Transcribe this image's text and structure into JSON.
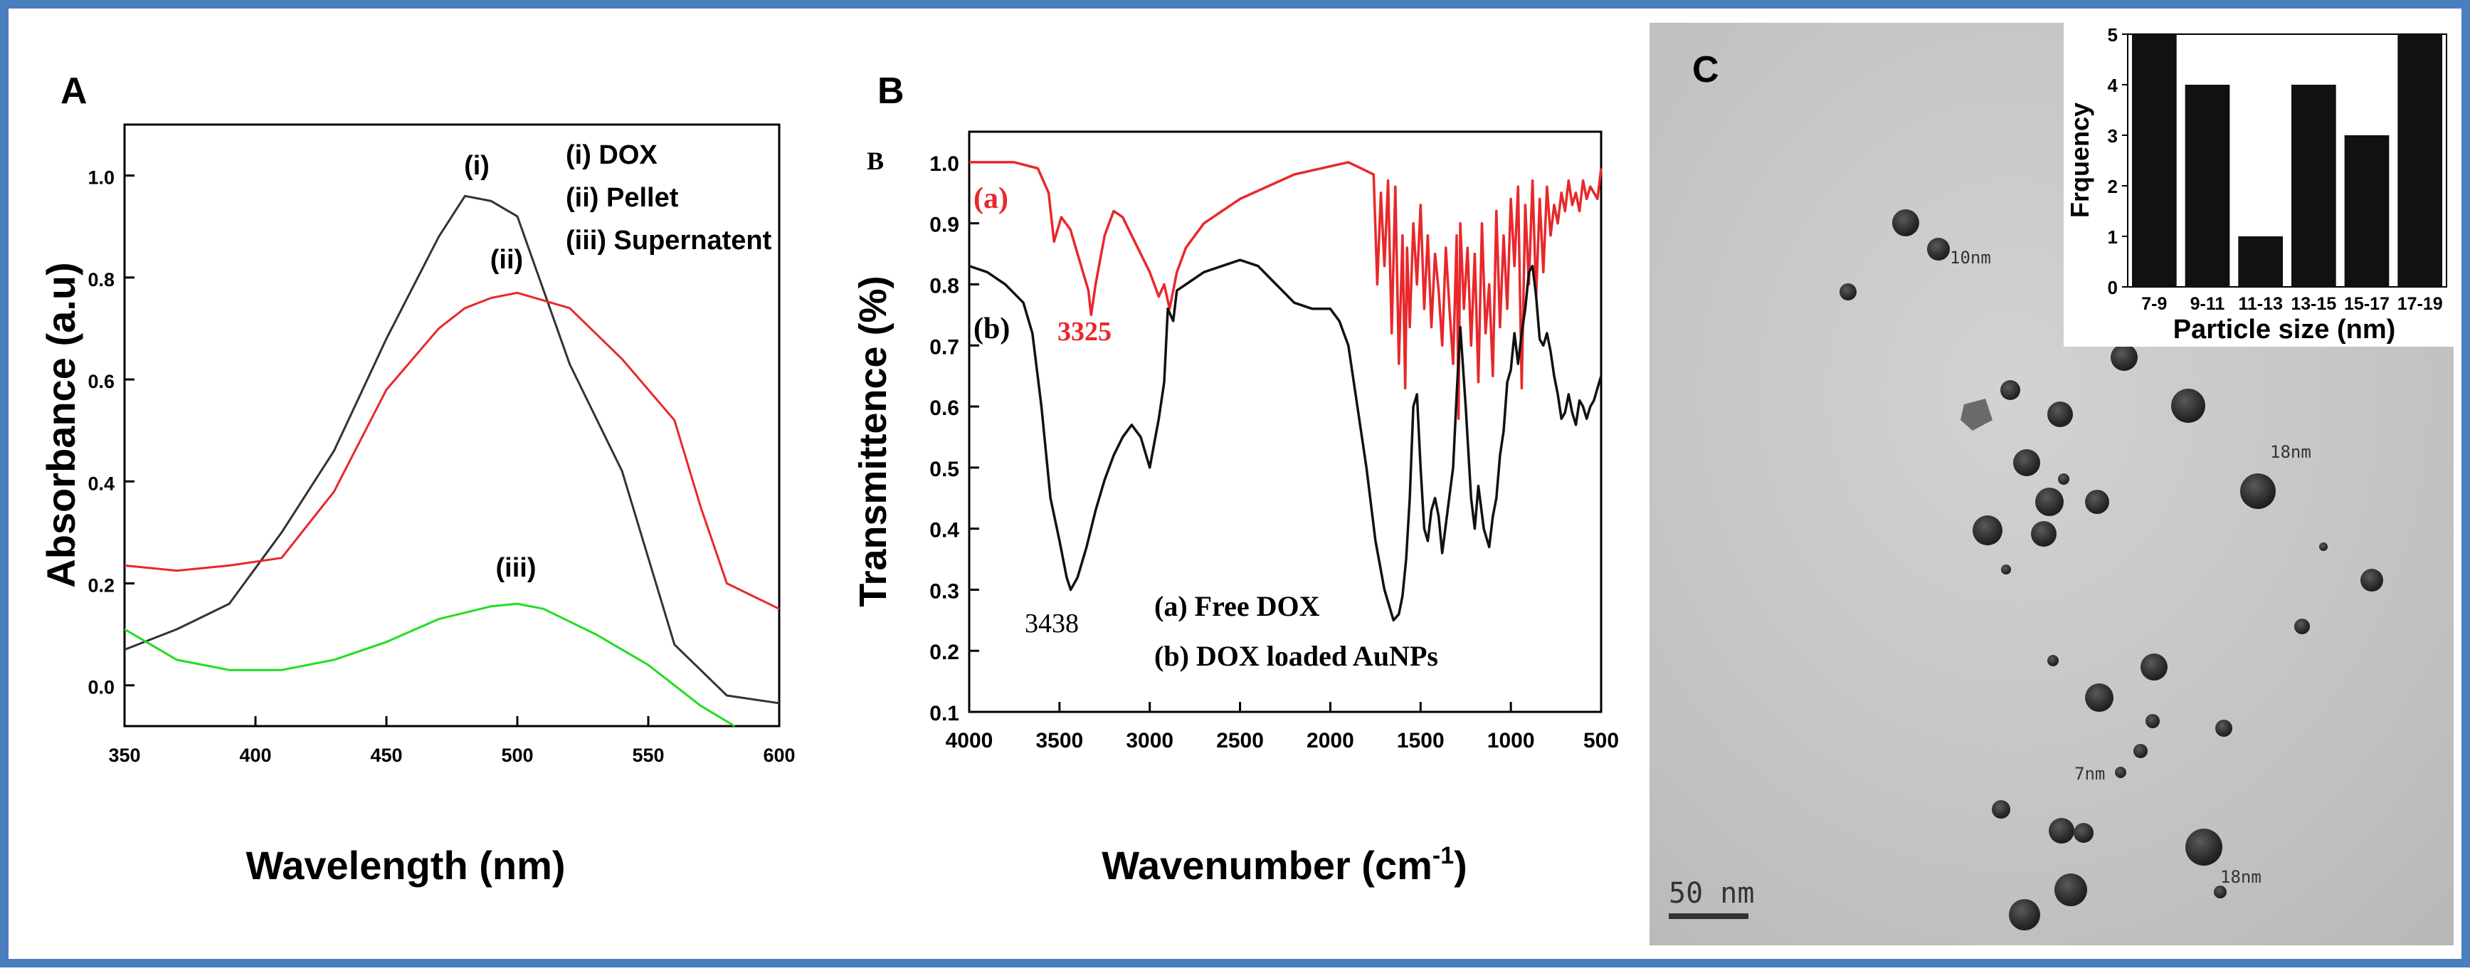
{
  "colors": {
    "frame": "#4a7ebf",
    "black_curve": "#333333",
    "red": "#e8282b",
    "green": "#22dd22",
    "tem_bg": "#c8c8c8"
  },
  "chart_data": [
    {
      "panel": "A",
      "type": "line",
      "xlabel": "Wavelength (nm)",
      "ylabel": "Absorbance (a.u)",
      "xlim": [
        350,
        600
      ],
      "ylim": [
        -0.08,
        1.1
      ],
      "xticks": [
        "350",
        "400",
        "450",
        "500",
        "550",
        "600"
      ],
      "yticks": [
        "0.0",
        "0.2",
        "0.4",
        "0.6",
        "0.8",
        "1.0"
      ],
      "legend": [
        "(i) DOX",
        "(ii) Pellet",
        "(iii) Supernatent"
      ],
      "series": [
        {
          "name": "(i)",
          "color": "#333333",
          "x": [
            350,
            370,
            390,
            410,
            430,
            450,
            470,
            480,
            490,
            500,
            520,
            540,
            560,
            580,
            600
          ],
          "y": [
            0.07,
            0.11,
            0.16,
            0.3,
            0.46,
            0.68,
            0.88,
            0.96,
            0.95,
            0.92,
            0.63,
            0.42,
            0.08,
            -0.02,
            -0.035
          ]
        },
        {
          "name": "(ii)",
          "color": "#e8282b",
          "x": [
            350,
            370,
            390,
            410,
            430,
            450,
            470,
            480,
            490,
            500,
            520,
            540,
            560,
            570,
            580,
            600
          ],
          "y": [
            0.235,
            0.225,
            0.235,
            0.25,
            0.38,
            0.58,
            0.7,
            0.74,
            0.76,
            0.77,
            0.74,
            0.64,
            0.52,
            0.35,
            0.2,
            0.15
          ]
        },
        {
          "name": "(iii)",
          "color": "#22dd22",
          "x": [
            350,
            370,
            390,
            410,
            430,
            450,
            470,
            490,
            500,
            510,
            530,
            550,
            570,
            583
          ],
          "y": [
            0.11,
            0.05,
            0.03,
            0.03,
            0.05,
            0.085,
            0.13,
            0.155,
            0.16,
            0.15,
            0.1,
            0.04,
            -0.04,
            -0.09
          ]
        }
      ],
      "annotations": [
        "(i)",
        "(ii)",
        "(iii)"
      ]
    },
    {
      "panel": "B",
      "type": "line",
      "xlabel": "Wavenumber (cm⁻¹)",
      "xlabel_main": "Wavenumber (cm",
      "xlabel_sup": "-1",
      "xlabel_close": ")",
      "ylabel": "Transmittence (%)",
      "xlim": [
        4000,
        500
      ],
      "ylim": [
        0.1,
        1.05
      ],
      "xticks": [
        "4000",
        "3500",
        "3000",
        "2500",
        "2000",
        "1500",
        "1000",
        "500"
      ],
      "yticks": [
        "0.1",
        "0.2",
        "0.3",
        "0.4",
        "0.5",
        "0.6",
        "0.7",
        "0.8",
        "0.9",
        "1.0"
      ],
      "corner_label": "B",
      "series": [
        {
          "name": "(a) Free DOX",
          "color": "#e8282b",
          "x": [
            4000,
            3750,
            3620,
            3560,
            3530,
            3490,
            3440,
            3390,
            3340,
            3325,
            3300,
            3250,
            3200,
            3150,
            3100,
            3000,
            2950,
            2920,
            2890,
            2850,
            2800,
            2700,
            2500,
            2200,
            1900,
            1760,
            1740,
            1720,
            1700,
            1680,
            1660,
            1640,
            1620,
            1600,
            1585,
            1575,
            1560,
            1540,
            1520,
            1500,
            1480,
            1460,
            1440,
            1420,
            1400,
            1380,
            1360,
            1340,
            1320,
            1300,
            1290,
            1280,
            1260,
            1240,
            1220,
            1200,
            1180,
            1160,
            1140,
            1120,
            1100,
            1080,
            1060,
            1040,
            1020,
            1000,
            980,
            960,
            940,
            920,
            900,
            880,
            860,
            840,
            820,
            800,
            780,
            760,
            740,
            720,
            700,
            680,
            660,
            640,
            620,
            600,
            580,
            560,
            540,
            520,
            500
          ],
          "y": [
            1.0,
            1.0,
            0.99,
            0.95,
            0.87,
            0.91,
            0.89,
            0.84,
            0.79,
            0.75,
            0.8,
            0.88,
            0.92,
            0.91,
            0.88,
            0.82,
            0.78,
            0.8,
            0.76,
            0.82,
            0.86,
            0.9,
            0.94,
            0.98,
            1.0,
            0.98,
            0.8,
            0.95,
            0.83,
            0.97,
            0.72,
            0.96,
            0.67,
            0.88,
            0.63,
            0.86,
            0.73,
            0.9,
            0.8,
            0.93,
            0.76,
            0.88,
            0.73,
            0.85,
            0.79,
            0.7,
            0.86,
            0.76,
            0.67,
            0.88,
            0.58,
            0.9,
            0.76,
            0.86,
            0.7,
            0.85,
            0.64,
            0.9,
            0.72,
            0.8,
            0.65,
            0.92,
            0.73,
            0.88,
            0.76,
            0.94,
            0.83,
            0.96,
            0.63,
            0.93,
            0.8,
            0.97,
            0.78,
            0.94,
            0.82,
            0.96,
            0.88,
            0.93,
            0.9,
            0.95,
            0.92,
            0.97,
            0.93,
            0.95,
            0.92,
            0.97,
            0.94,
            0.96,
            0.95,
            0.94,
            0.99
          ]
        },
        {
          "name": "(b) DOX loaded AuNPs",
          "color": "#111111",
          "x": [
            4000,
            3900,
            3800,
            3700,
            3650,
            3600,
            3550,
            3500,
            3460,
            3438,
            3400,
            3350,
            3300,
            3250,
            3200,
            3150,
            3100,
            3050,
            3000,
            2950,
            2920,
            2900,
            2870,
            2850,
            2800,
            2700,
            2600,
            2500,
            2400,
            2300,
            2200,
            2100,
            2000,
            1950,
            1900,
            1850,
            1800,
            1750,
            1700,
            1650,
            1620,
            1600,
            1580,
            1560,
            1540,
            1520,
            1500,
            1480,
            1460,
            1440,
            1420,
            1400,
            1380,
            1350,
            1320,
            1300,
            1280,
            1250,
            1220,
            1200,
            1180,
            1150,
            1120,
            1100,
            1080,
            1060,
            1040,
            1020,
            1000,
            980,
            960,
            940,
            920,
            900,
            880,
            860,
            840,
            820,
            800,
            780,
            760,
            740,
            720,
            700,
            680,
            660,
            640,
            620,
            600,
            580,
            560,
            540,
            520,
            500
          ],
          "y": [
            0.83,
            0.82,
            0.8,
            0.77,
            0.72,
            0.6,
            0.45,
            0.38,
            0.32,
            0.3,
            0.32,
            0.37,
            0.43,
            0.48,
            0.52,
            0.55,
            0.57,
            0.55,
            0.5,
            0.58,
            0.64,
            0.76,
            0.74,
            0.79,
            0.8,
            0.82,
            0.83,
            0.84,
            0.83,
            0.8,
            0.77,
            0.76,
            0.76,
            0.74,
            0.7,
            0.6,
            0.5,
            0.38,
            0.3,
            0.25,
            0.26,
            0.29,
            0.35,
            0.45,
            0.6,
            0.62,
            0.5,
            0.4,
            0.38,
            0.43,
            0.45,
            0.42,
            0.36,
            0.43,
            0.5,
            0.62,
            0.73,
            0.6,
            0.45,
            0.4,
            0.47,
            0.4,
            0.37,
            0.42,
            0.45,
            0.52,
            0.56,
            0.64,
            0.66,
            0.72,
            0.67,
            0.72,
            0.76,
            0.82,
            0.83,
            0.78,
            0.71,
            0.7,
            0.72,
            0.69,
            0.65,
            0.62,
            0.58,
            0.59,
            0.62,
            0.59,
            0.57,
            0.61,
            0.6,
            0.58,
            0.6,
            0.61,
            0.63,
            0.65
          ]
        }
      ],
      "annotations": {
        "a_label": "(a)",
        "b_label": "(b)",
        "peak_red": "3325",
        "peak_black": "3438",
        "legend_a": "(a) Free DOX",
        "legend_b": "(b) DOX loaded AuNPs"
      }
    },
    {
      "panel": "C-inset",
      "type": "bar",
      "xlabel": "Particle size (nm)",
      "ylabel": "Frquency",
      "categories": [
        "7-9",
        "9-11",
        "11-13",
        "13-15",
        "15-17",
        "17-19"
      ],
      "values": [
        5,
        4,
        1,
        4,
        3,
        5
      ],
      "ylim": [
        0,
        5
      ],
      "yticks": [
        "0",
        "1",
        "2",
        "3",
        "4",
        "5"
      ]
    }
  ],
  "panel_c": {
    "label": "C",
    "scale_bar": "50 nm",
    "size_labels": [
      "10nm",
      "18nm",
      "7nm",
      "18nm"
    ]
  }
}
